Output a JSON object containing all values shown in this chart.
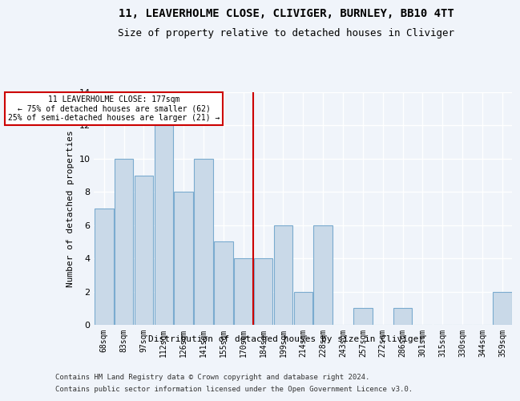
{
  "title_line1": "11, LEAVERHOLME CLOSE, CLIVIGER, BURNLEY, BB10 4TT",
  "title_line2": "Size of property relative to detached houses in Cliviger",
  "xlabel": "Distribution of detached houses by size in Cliviger",
  "ylabel": "Number of detached properties",
  "categories": [
    "68sqm",
    "83sqm",
    "97sqm",
    "112sqm",
    "126sqm",
    "141sqm",
    "155sqm",
    "170sqm",
    "184sqm",
    "199sqm",
    "214sqm",
    "228sqm",
    "243sqm",
    "257sqm",
    "272sqm",
    "286sqm",
    "301sqm",
    "315sqm",
    "330sqm",
    "344sqm",
    "359sqm"
  ],
  "values": [
    7,
    10,
    9,
    12,
    8,
    10,
    5,
    4,
    4,
    6,
    2,
    6,
    0,
    1,
    0,
    1,
    0,
    0,
    0,
    0,
    2
  ],
  "bar_color": "#c9d9e8",
  "bar_edge_color": "#7aabcf",
  "vline_x": 8,
  "vline_color": "#cc0000",
  "annotation_text": "11 LEAVERHOLME CLOSE: 177sqm\n← 75% of detached houses are smaller (62)\n25% of semi-detached houses are larger (21) →",
  "annotation_box_color": "#cc0000",
  "ylim": [
    0,
    14
  ],
  "yticks": [
    0,
    2,
    4,
    6,
    8,
    10,
    12,
    14
  ],
  "footer_line1": "Contains HM Land Registry data © Crown copyright and database right 2024.",
  "footer_line2": "Contains public sector information licensed under the Open Government Licence v3.0.",
  "bg_color": "#f0f4fa",
  "grid_color": "#ffffff"
}
